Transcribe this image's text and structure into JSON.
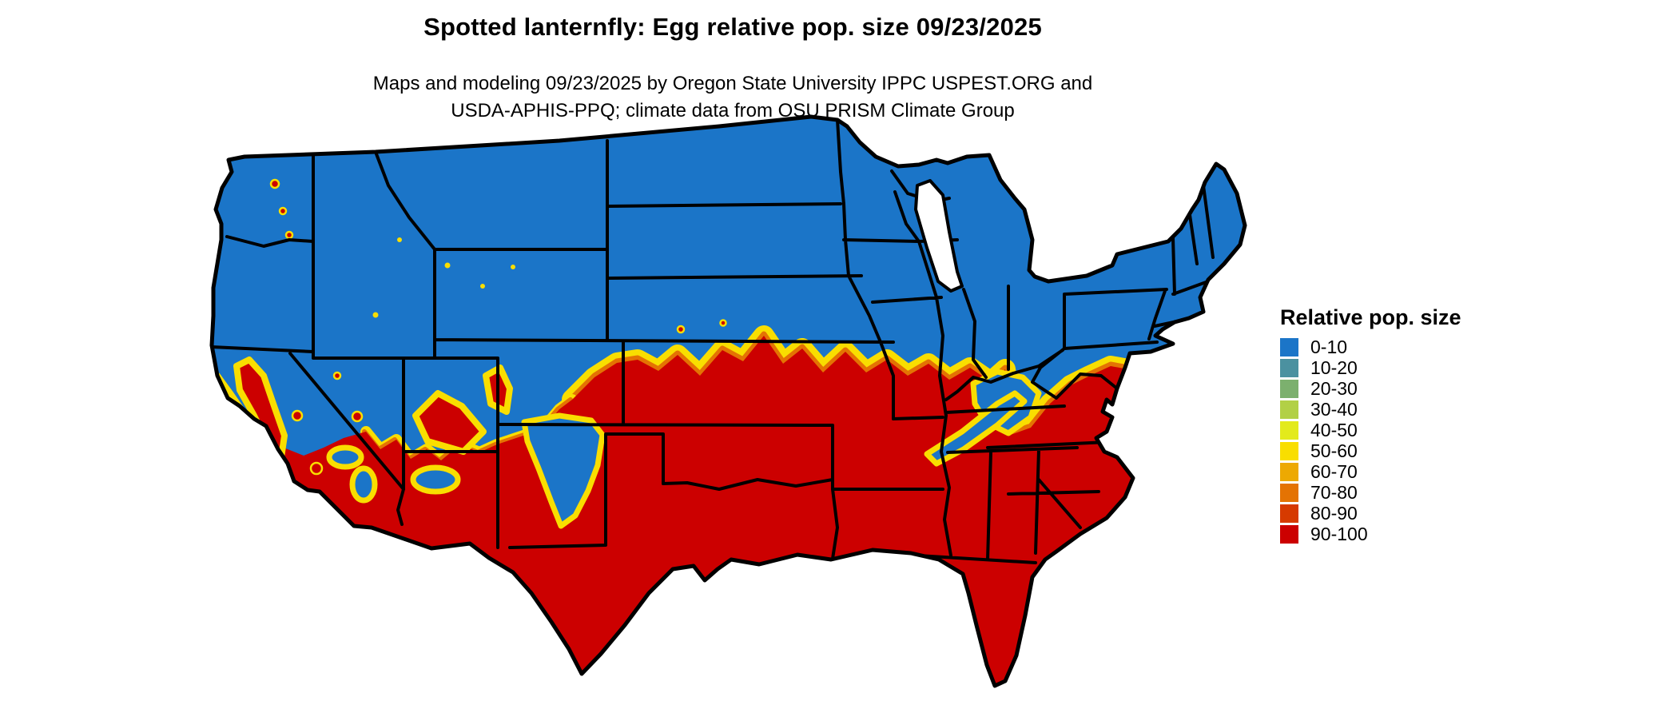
{
  "header": {
    "title": "Spotted lanternfly: Egg relative pop. size 09/23/2025",
    "subtitle_line1": "Maps and modeling 09/23/2025 by Oregon State University IPPC USPEST.ORG and",
    "subtitle_line2": "USDA-APHIS-PPQ; climate data from OSU PRISM Climate Group"
  },
  "legend": {
    "title": "Relative pop. size",
    "items": [
      {
        "label": "0-10",
        "color": "#1b75c8"
      },
      {
        "label": "10-20",
        "color": "#4b91a0"
      },
      {
        "label": "20-30",
        "color": "#7cb06e"
      },
      {
        "label": "30-40",
        "color": "#b2d046"
      },
      {
        "label": "40-50",
        "color": "#e3ea1c"
      },
      {
        "label": "50-60",
        "color": "#f9de00"
      },
      {
        "label": "60-70",
        "color": "#eda902"
      },
      {
        "label": "70-80",
        "color": "#e47303"
      },
      {
        "label": "80-90",
        "color": "#d63a00"
      },
      {
        "label": "90-100",
        "color": "#cc0000"
      }
    ]
  },
  "map": {
    "region": "Contiguous United States",
    "pattern_summary": {
      "north": "0-10 (blue): Pacific Northwest, northern Rockies, northern Plains, Great Lakes, Northeast and Appalachian highlands",
      "south": "90-100 (red): Southwest deserts, southern Plains, Texas, Gulf Coast states, Southeast, mid-Atlantic coastal plain, California Central Valley and coast",
      "transition_band": "Yellow-orange fringe (40-80 classes) running from Nebraska/Kansas across Missouri, Illinois, Indiana and Ohio to the mid-Atlantic",
      "blue_pockets": "Sierra Nevada, northern New Mexico Rockies, Mogollon Rim, Appalachians (WV/VA ridge)",
      "red_pockets": "California Central Valley and coast, southern Nevada, Utah low deserts, Cascades foothill specks"
    }
  }
}
